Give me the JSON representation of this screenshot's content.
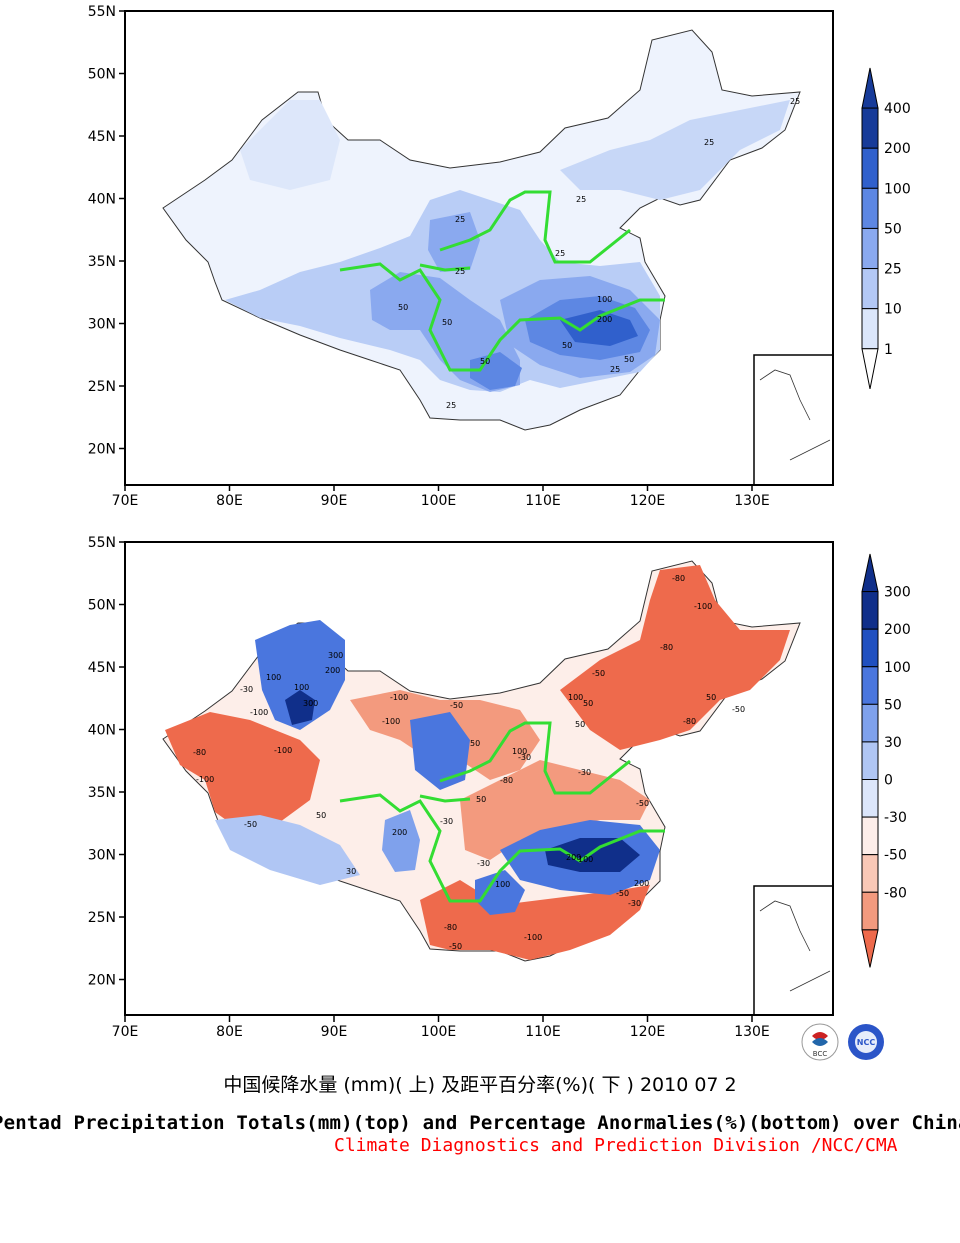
{
  "top_map": {
    "lat_labels": [
      "55N",
      "50N",
      "45N",
      "40N",
      "35N",
      "30N",
      "25N",
      "20N"
    ],
    "lon_labels": [
      "70E",
      "80E",
      "90E",
      "100E",
      "110E",
      "120E",
      "130E"
    ],
    "colorbar_labels": [
      "400",
      "200",
      "100",
      "50",
      "25",
      "10",
      "1"
    ],
    "contour_labels": [
      "25",
      "25",
      "25",
      "25",
      "25",
      "25",
      "50",
      "50",
      "50",
      "50",
      "100",
      "200",
      "50",
      "25",
      "25"
    ]
  },
  "bottom_map": {
    "lat_labels": [
      "55N",
      "50N",
      "45N",
      "40N",
      "35N",
      "30N",
      "25N",
      "20N"
    ],
    "lon_labels": [
      "70E",
      "80E",
      "90E",
      "100E",
      "110E",
      "120E",
      "130E"
    ],
    "colorbar_labels": [
      "300",
      "200",
      "100",
      "50",
      "30",
      "0",
      "-30",
      "-50",
      "-80"
    ],
    "contour_labels": [
      "-80",
      "-100",
      "-80",
      "-50",
      "100",
      "300",
      "200",
      "-30",
      "-100",
      "-100",
      "-80",
      "-100",
      "-50",
      "-100",
      "-30",
      "50",
      "100",
      "200",
      "300",
      "50",
      "30",
      "-50",
      "-100",
      "-80",
      "50",
      "-30",
      "-50",
      "-80",
      "-100",
      "-50",
      "50",
      "100",
      "50",
      "100",
      "200",
      "100",
      "-50",
      "-30",
      "50",
      "-80",
      "-30",
      "-30",
      "200",
      "100",
      "-50"
    ]
  },
  "palette": {
    "precip": [
      "#ffffff",
      "#dbe6fa",
      "#b3c8f5",
      "#8aa9ef",
      "#5d87e3",
      "#3060cc",
      "#173b99"
    ],
    "anomaly_pos": [
      "#ffffff",
      "#dce6fa",
      "#b0c6f4",
      "#7fa1ec",
      "#4a76de",
      "#2050c0",
      "#102f8a"
    ],
    "anomaly_neg": [
      "#fdeee9",
      "#f9c8b6",
      "#f39a7e",
      "#ee6a4c"
    ],
    "river": "#33dd33"
  },
  "captions": {
    "chinese": "中国候降水量 (mm)( 上) 及距平百分率(%)( 下 ) 2010 07 2",
    "english": "Pentad Precipitation Totals(mm)(top) and Percentage Anormalies(%)(bottom) over China",
    "division": "Climate Diagnostics and Prediction Division /NCC/CMA"
  },
  "logos": {
    "left": "BCC",
    "right": "NCC"
  }
}
